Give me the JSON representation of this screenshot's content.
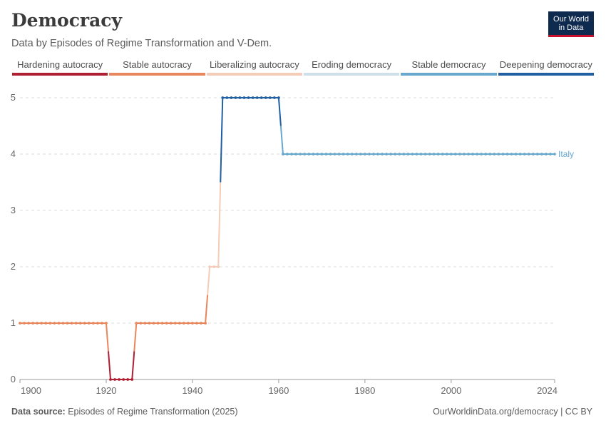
{
  "header": {
    "title": "Democracy",
    "subtitle": "Data by Episodes of Regime Transformation and V-Dem."
  },
  "logo": {
    "line1": "Our World",
    "line2": "in Data"
  },
  "legend": [
    {
      "label": "Hardening autocracy",
      "color": "#b01e32"
    },
    {
      "label": "Stable autocracy",
      "color": "#e8875d"
    },
    {
      "label": "Liberalizing autocracy",
      "color": "#f3cdb7"
    },
    {
      "label": "Eroding democracy",
      "color": "#cde0ea"
    },
    {
      "label": "Stable democracy",
      "color": "#68a8cd"
    },
    {
      "label": "Deepening democracy",
      "color": "#1f5fa2"
    }
  ],
  "footer": {
    "source_label": "Data source:",
    "source_text": "Episodes of Regime Transformation (2025)",
    "url_text": "OurWorldinData.org/democracy | CC BY"
  },
  "chart_data": {
    "type": "line",
    "xlim": [
      1900,
      2024
    ],
    "ylim": [
      0,
      5
    ],
    "x_ticks": [
      1900,
      1920,
      1940,
      1960,
      1980,
      2000,
      2024
    ],
    "y_ticks": [
      0,
      1,
      2,
      3,
      4,
      5
    ],
    "grid": "horizontal dashed",
    "series": [
      {
        "name": "Italy",
        "color": "#68a8cd",
        "segments": [
          {
            "from": 1900,
            "to": 1920,
            "value": 1,
            "category": "Stable autocracy"
          },
          {
            "from": 1921,
            "to": 1926,
            "value": 0,
            "category": "Hardening autocracy"
          },
          {
            "from": 1927,
            "to": 1943,
            "value": 1,
            "category": "Stable autocracy"
          },
          {
            "from": 1944,
            "to": 1946,
            "value": 2,
            "category": "Liberalizing autocracy"
          },
          {
            "from": 1947,
            "to": 1960,
            "value": 5,
            "category": "Deepening democracy"
          },
          {
            "from": 1961,
            "to": 2024,
            "value": 4,
            "category": "Stable democracy"
          }
        ]
      }
    ]
  }
}
